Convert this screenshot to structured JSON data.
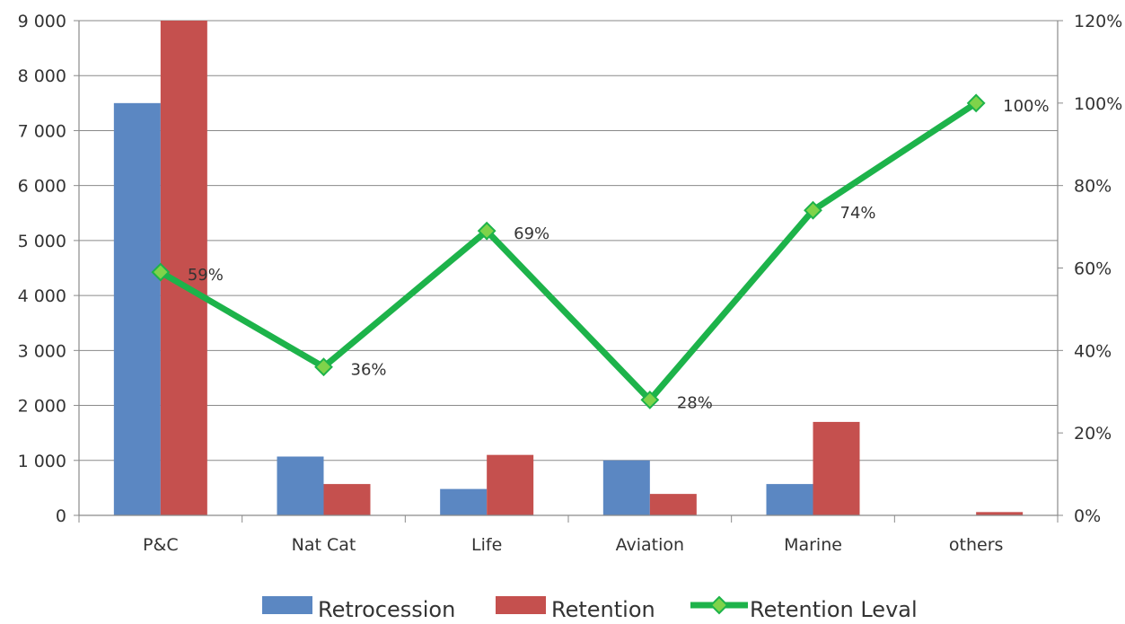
{
  "chart_data": {
    "type": "bar",
    "categories": [
      "P&C",
      "Nat Cat",
      "Life",
      "Aviation",
      "Marine",
      "others"
    ],
    "series": [
      {
        "name": "Retrocession",
        "kind": "bar",
        "axis": "left",
        "color": "#5b87c2",
        "values": [
          7500,
          1070,
          480,
          1000,
          570,
          0
        ]
      },
      {
        "name": "Retention",
        "kind": "bar",
        "axis": "left",
        "color": "#c5504e",
        "values": [
          9000,
          570,
          1100,
          390,
          1700,
          60
        ]
      },
      {
        "name": "Retention Leval",
        "kind": "line",
        "axis": "right",
        "color": "#1db34a",
        "marker": "diamond",
        "values": [
          59,
          36,
          69,
          28,
          74,
          100
        ],
        "labels": [
          "59%",
          "36%",
          "69%",
          "28%",
          "74%",
          "100%"
        ]
      }
    ],
    "y_left": {
      "ylim": [
        0,
        9000
      ],
      "ticks": [
        0,
        1000,
        2000,
        3000,
        4000,
        5000,
        6000,
        7000,
        8000,
        9000
      ],
      "tick_labels": [
        "0",
        "1 000",
        "2 000",
        "3 000",
        "4 000",
        "5 000",
        "6 000",
        "7 000",
        "8 000",
        "9 000"
      ]
    },
    "y_right": {
      "ylim": [
        0,
        120
      ],
      "ticks": [
        0,
        20,
        40,
        60,
        80,
        100,
        120
      ],
      "tick_labels": [
        "0%",
        "20%",
        "40%",
        "60%",
        "80%",
        "100%",
        "120%"
      ]
    },
    "grid": true,
    "legend_position": "bottom",
    "legend": [
      "Retrocession",
      "Retention",
      "Retention Leval"
    ]
  }
}
